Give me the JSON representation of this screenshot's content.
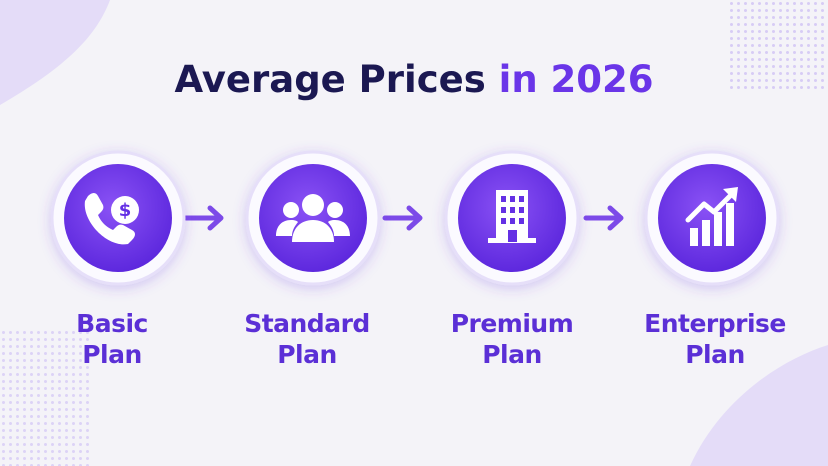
{
  "title": {
    "main": "Average Prices",
    "highlight": "in 2026"
  },
  "steps": [
    {
      "label": [
        "Basic",
        "Plan"
      ]
    },
    {
      "label": [
        "Standard",
        "Plan"
      ]
    },
    {
      "label": [
        "Premium",
        "Plan"
      ]
    },
    {
      "label": [
        "Enterprise",
        "Plan"
      ]
    }
  ]
}
